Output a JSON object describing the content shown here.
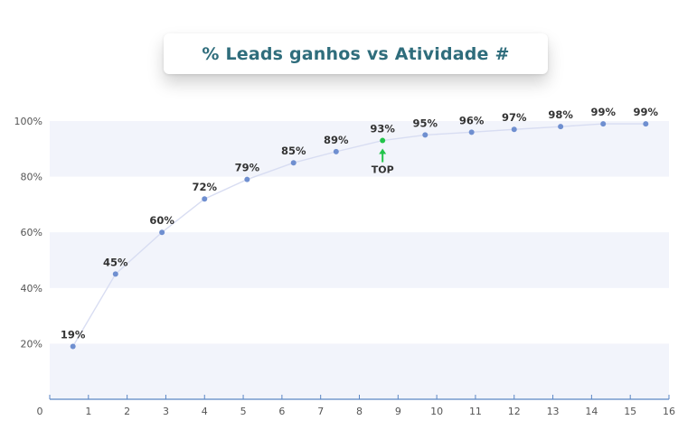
{
  "title": "% Leads ganhos vs Atividade #",
  "colors": {
    "band": "#f2f4fb",
    "line": "#d8ddf2",
    "point": "#6f8fd0",
    "highlight": "#22c44a",
    "axis": "#5b86c4"
  },
  "chart_data": {
    "type": "line",
    "title": "% Leads ganhos vs Atividade #",
    "xlabel": "",
    "ylabel": "",
    "xlim": [
      0,
      16
    ],
    "ylim": [
      0,
      100
    ],
    "x_ticks": [
      "0",
      "1",
      "2",
      "3",
      "4",
      "5",
      "6",
      "7",
      "8",
      "9",
      "10",
      "11",
      "12",
      "13",
      "14",
      "15",
      "16"
    ],
    "y_ticks": [
      "20%",
      "40%",
      "60%",
      "80%",
      "100%"
    ],
    "series": [
      {
        "x": [
          0.6,
          1.7,
          2.9,
          4.0,
          5.1,
          6.3,
          7.4,
          8.6,
          9.7,
          10.9,
          12.0,
          13.2,
          14.3,
          15.4
        ],
        "values": [
          19,
          45,
          60,
          72,
          79,
          85,
          89,
          93,
          95,
          96,
          97,
          98,
          99,
          99
        ],
        "labels": [
          "19%",
          "45%",
          "60%",
          "72%",
          "79%",
          "85%",
          "89%",
          "93%",
          "95%",
          "96%",
          "97%",
          "98%",
          "99%",
          "99%"
        ]
      }
    ],
    "highlight": {
      "index": 7,
      "label": "TOP"
    }
  }
}
